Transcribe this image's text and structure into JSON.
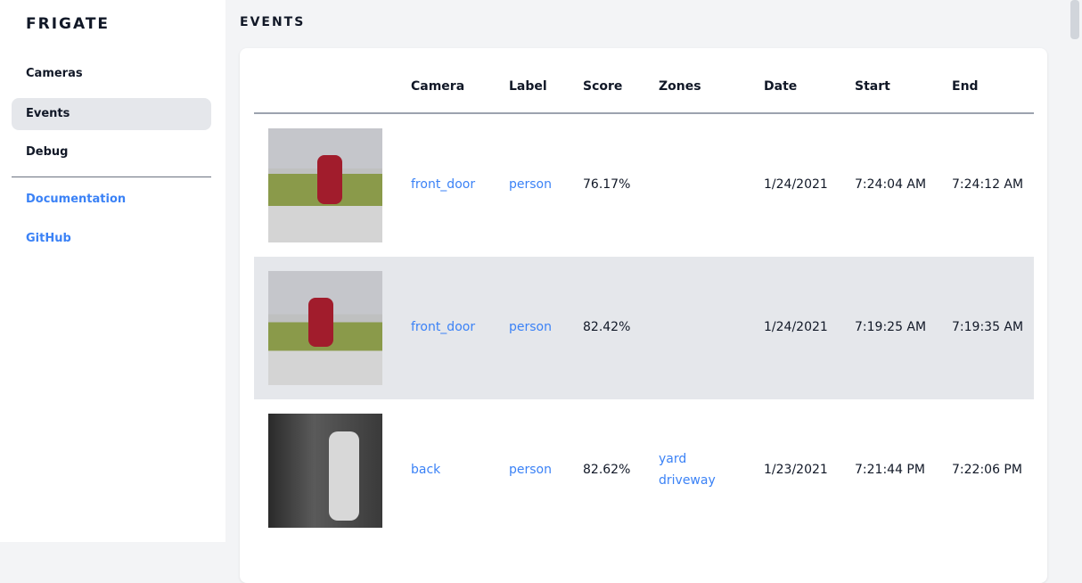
{
  "sidebar": {
    "logo": "FRIGATE",
    "items": [
      {
        "label": "Cameras"
      },
      {
        "label": "Events"
      },
      {
        "label": "Debug"
      }
    ],
    "links": [
      {
        "label": "Documentation"
      },
      {
        "label": "GitHub"
      }
    ]
  },
  "page": {
    "title": "EVENTS"
  },
  "table": {
    "headers": [
      "Camera",
      "Label",
      "Score",
      "Zones",
      "Date",
      "Start",
      "End"
    ],
    "rows": [
      {
        "camera": "front_door",
        "label": "person",
        "score": "76.17%",
        "zones": [
          "",
          ""
        ],
        "date": "1/24/2021",
        "start": "7:24:04 AM",
        "end": "7:24:12 AM"
      },
      {
        "camera": "front_door",
        "label": "person",
        "score": "82.42%",
        "zones": [
          "",
          ""
        ],
        "date": "1/24/2021",
        "start": "7:19:25 AM",
        "end": "7:19:35 AM"
      },
      {
        "camera": "back",
        "label": "person",
        "score": "82.62%",
        "zones": [
          "yard",
          "driveway"
        ],
        "date": "1/23/2021",
        "start": "7:21:44 PM",
        "end": "7:22:06 PM"
      }
    ]
  },
  "colors": {
    "accent": "#3b82f6",
    "selected": "#e5e7eb"
  }
}
